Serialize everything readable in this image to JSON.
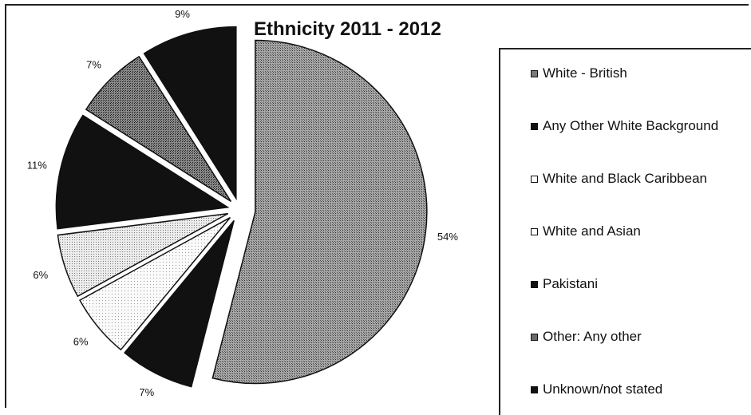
{
  "chart_data": {
    "type": "pie",
    "title": "Ethnicity 2011 - 2012",
    "slices": [
      {
        "label": "White - British",
        "value": 54,
        "display": "54%",
        "color": "#8c8c8c",
        "pattern": "dense-grey"
      },
      {
        "label": "Any Other White Background",
        "value": 7,
        "display": "7%",
        "color": "#111111",
        "pattern": "solid"
      },
      {
        "label": "White and Black Caribbean",
        "value": 6,
        "display": "6%",
        "color": "#f4f4f4",
        "pattern": "sparse-dots"
      },
      {
        "label": "White and Asian",
        "value": 6,
        "display": "6%",
        "color": "#e6e6e6",
        "pattern": "light-dots"
      },
      {
        "label": "Pakistani",
        "value": 11,
        "display": "11%",
        "color": "#111111",
        "pattern": "solid"
      },
      {
        "label": "Other: Any other",
        "value": 7,
        "display": "7%",
        "color": "#6e6e6e",
        "pattern": "dark-dots"
      },
      {
        "label": "Unknown/not stated",
        "value": 9,
        "display": "9%",
        "color": "#111111",
        "pattern": "solid"
      }
    ],
    "legend": "right"
  },
  "legend_items": [
    {
      "label": "White - British"
    },
    {
      "label": "Any Other White Background"
    },
    {
      "label": "White and Black Caribbean"
    },
    {
      "label": "White and Asian"
    },
    {
      "label": "Pakistani"
    },
    {
      "label": "Other: Any other"
    },
    {
      "label": "Unknown/not stated"
    }
  ]
}
